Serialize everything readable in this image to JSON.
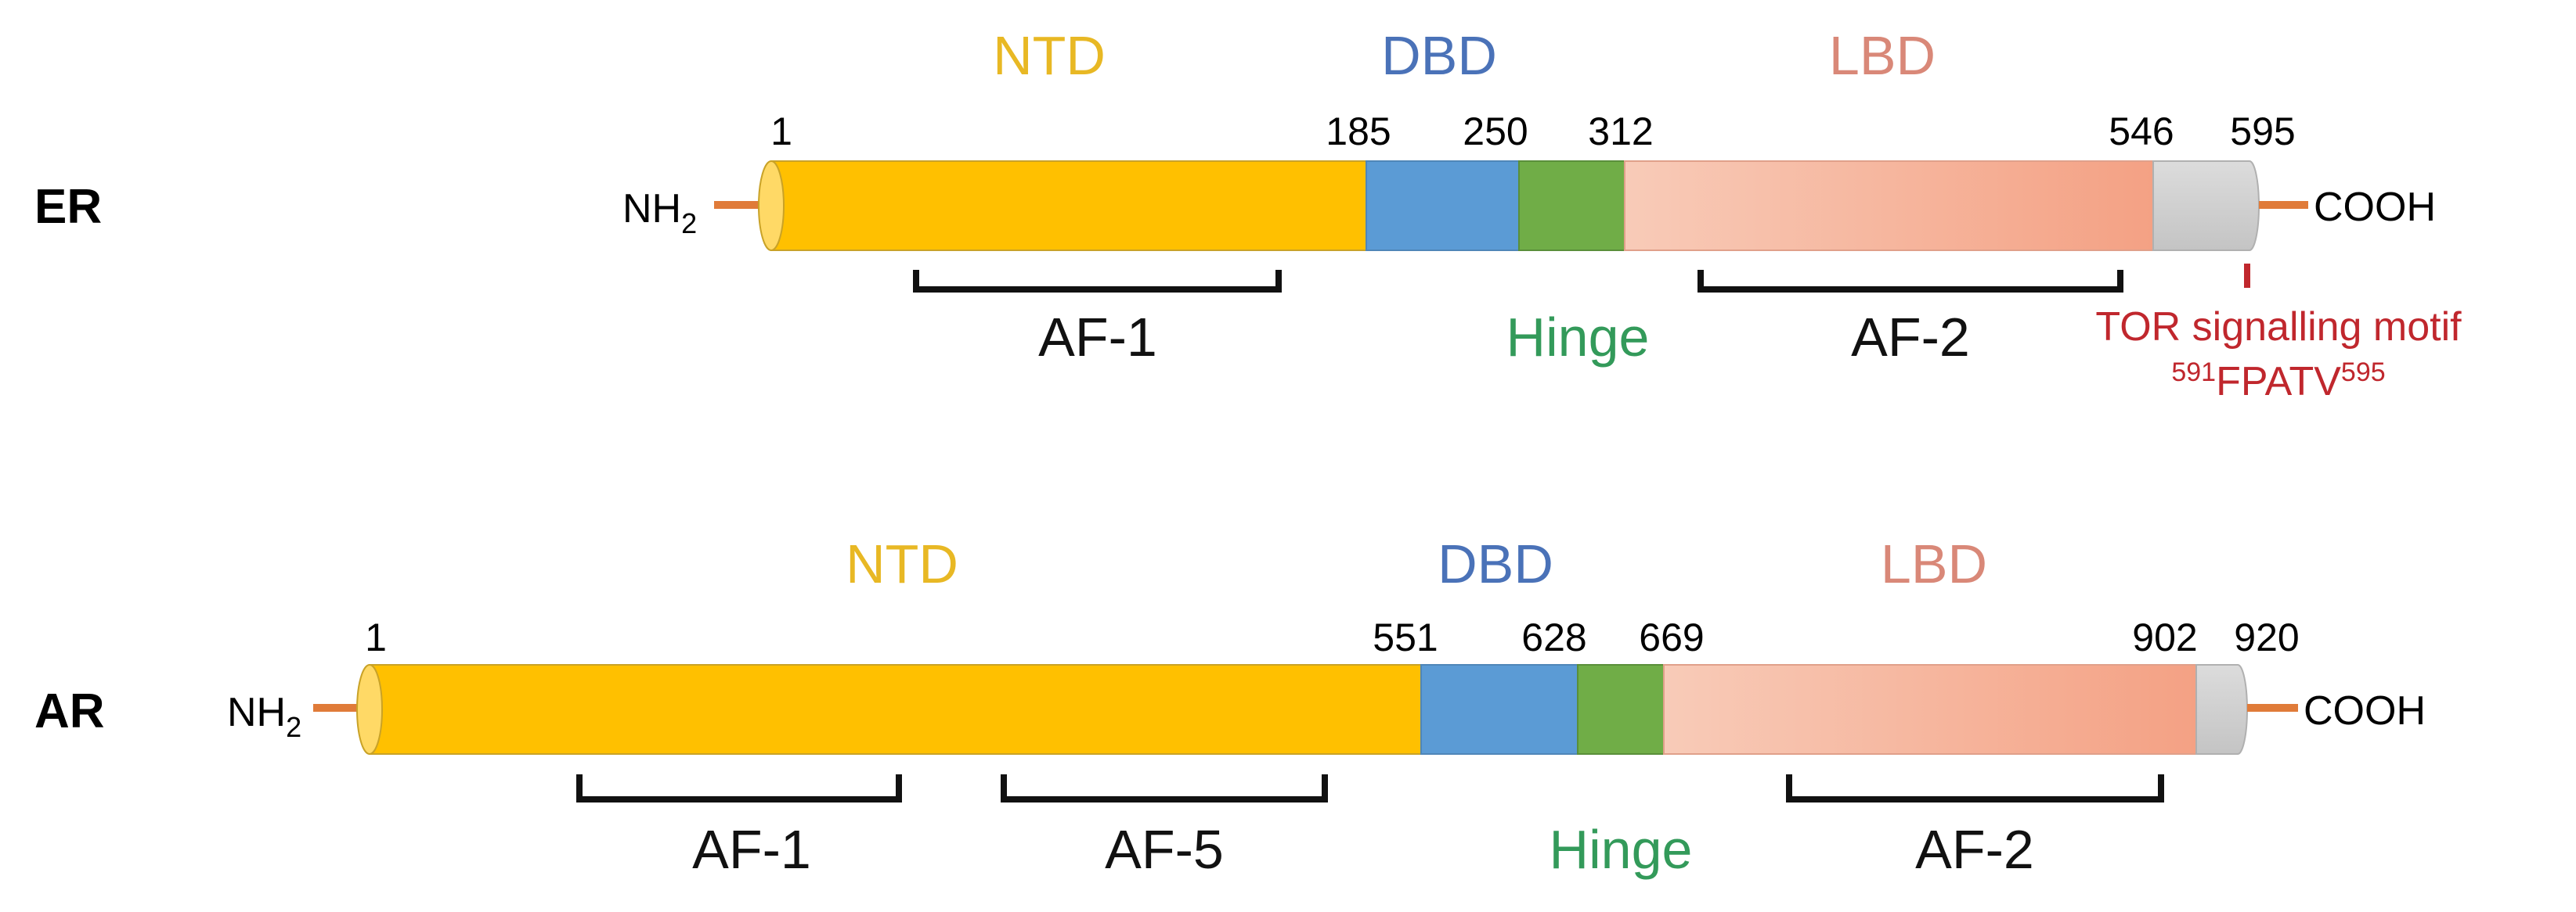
{
  "colors": {
    "ntd": "#ffc000",
    "ntd_label": "#e8b824",
    "dbd": "#5b9bd5",
    "dbd_label": "#4a72b8",
    "hinge": "#70ad47",
    "hinge_label": "#339a5a",
    "lbd_start": "#f8cbb8",
    "lbd_end": "#f4a184",
    "lbd_label": "#d98878",
    "tail": "#d0d0d0",
    "stub": "#e07b39",
    "motif": "#c0272d"
  },
  "er": {
    "name": "ER",
    "n_term": "NH",
    "n_term_sub": "2",
    "c_term": "COOH",
    "positions": [
      "1",
      "185",
      "250",
      "312",
      "546",
      "595"
    ],
    "domains": {
      "ntd": "NTD",
      "dbd": "DBD",
      "lbd": "LBD",
      "hinge": "Hinge"
    },
    "af": [
      "AF-1",
      "AF-2"
    ],
    "tor_line": "TOR signalling motif",
    "motif_start": "591",
    "motif_seq": "FPATV",
    "motif_end": "595"
  },
  "ar": {
    "name": "AR",
    "n_term": "NH",
    "n_term_sub": "2",
    "c_term": "COOH",
    "positions": [
      "1",
      "551",
      "628",
      "669",
      "902",
      "920"
    ],
    "domains": {
      "ntd": "NTD",
      "dbd": "DBD",
      "lbd": "LBD",
      "hinge": "Hinge"
    },
    "af": [
      "AF-1",
      "AF-5",
      "AF-2"
    ]
  }
}
